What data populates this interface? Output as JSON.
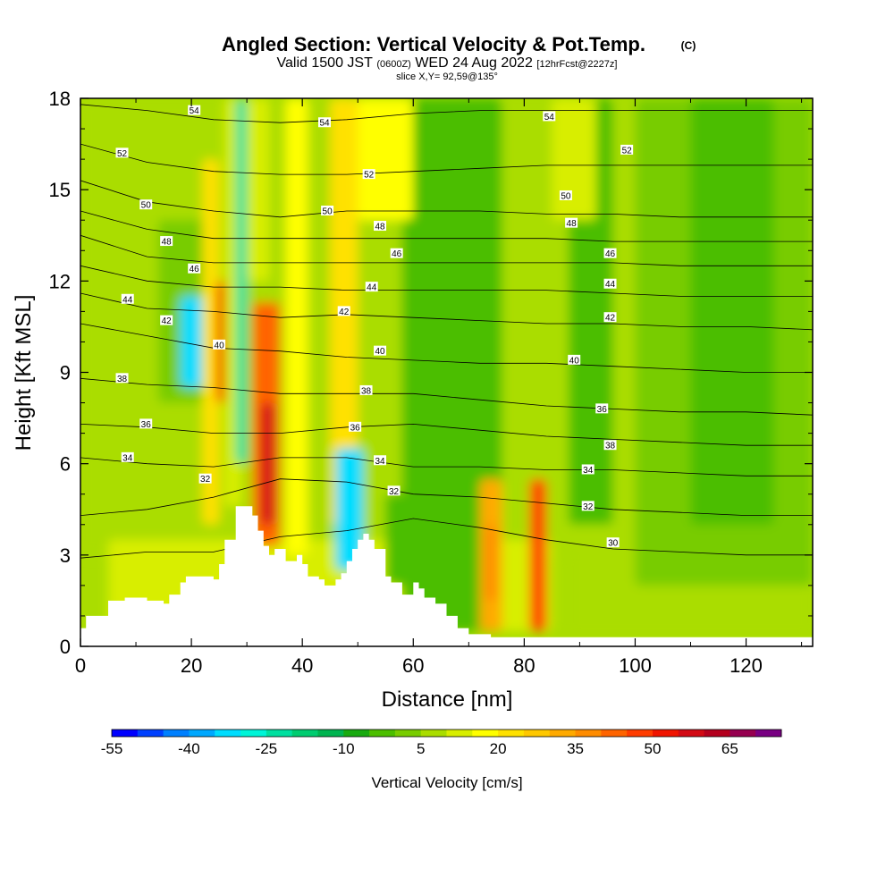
{
  "title": {
    "main": "Angled Section: Vertical Velocity & Pot.Temp.",
    "main_suffix": "(C)",
    "valid_a": "Valid 1500 JST",
    "valid_b": "(0600Z)",
    "valid_c": "WED 24 Aug 2022",
    "valid_d": "[12hrFcst@2227z]",
    "slice": "slice X,Y= 92,59@135°"
  },
  "chart_data": {
    "type": "heatmap",
    "xlabel": "Distance [nm]",
    "ylabel": "Height [Kft MSL]",
    "xlim": [
      0,
      132
    ],
    "ylim": [
      0,
      18
    ],
    "x_ticks": [
      "0",
      "20",
      "40",
      "60",
      "80",
      "100",
      "120"
    ],
    "y_ticks": [
      "0",
      "3",
      "6",
      "9",
      "12",
      "15",
      "18"
    ],
    "colorbar": {
      "label": "Vertical Velocity [cm/s]",
      "tick_labels": [
        "-55",
        "-40",
        "-25",
        "-10",
        "5",
        "20",
        "35",
        "50",
        "65"
      ],
      "levels": [
        -55,
        -50,
        -45,
        -40,
        -35,
        -30,
        -25,
        -20,
        -15,
        -10,
        -5,
        0,
        5,
        10,
        15,
        20,
        25,
        30,
        35,
        40,
        45,
        50,
        55,
        60,
        65,
        70
      ],
      "colors": [
        "#0000ff",
        "#0040ff",
        "#0080ff",
        "#00a8ff",
        "#00ddff",
        "#00f5d8",
        "#00e0a0",
        "#00cc70",
        "#00b450",
        "#18aa10",
        "#4cbe00",
        "#78cc00",
        "#aadd00",
        "#d8ee00",
        "#ffff00",
        "#ffe100",
        "#ffc800",
        "#ffaa00",
        "#ff8c00",
        "#ff6400",
        "#ff3c00",
        "#f01400",
        "#d20a14",
        "#b4001e",
        "#960050",
        "#780082"
      ]
    },
    "terrain": [
      [
        0,
        0.6
      ],
      [
        1,
        1.0
      ],
      [
        5,
        1.5
      ],
      [
        8,
        1.6
      ],
      [
        12,
        1.5
      ],
      [
        15,
        1.4
      ],
      [
        16,
        1.7
      ],
      [
        18,
        2.1
      ],
      [
        19,
        2.3
      ],
      [
        23,
        2.3
      ],
      [
        24,
        2.2
      ],
      [
        25,
        2.7
      ],
      [
        26,
        3.5
      ],
      [
        28,
        4.6
      ],
      [
        31,
        4.3
      ],
      [
        32,
        3.8
      ],
      [
        33,
        3.3
      ],
      [
        34,
        3.0
      ],
      [
        35,
        3.2
      ],
      [
        37,
        2.8
      ],
      [
        39,
        3.0
      ],
      [
        40,
        2.7
      ],
      [
        41,
        2.3
      ],
      [
        43,
        2.2
      ],
      [
        44,
        2.0
      ],
      [
        46,
        2.2
      ],
      [
        47,
        2.4
      ],
      [
        48,
        2.8
      ],
      [
        49,
        3.2
      ],
      [
        50,
        3.5
      ],
      [
        51,
        3.7
      ],
      [
        52,
        3.5
      ],
      [
        53,
        3.2
      ],
      [
        55,
        2.3
      ],
      [
        56,
        2.1
      ],
      [
        58,
        1.7
      ],
      [
        60,
        2.1
      ],
      [
        61,
        1.9
      ],
      [
        62,
        1.6
      ],
      [
        64,
        1.4
      ],
      [
        66,
        1.0
      ],
      [
        68,
        0.6
      ],
      [
        70,
        0.4
      ],
      [
        74,
        0.3
      ],
      [
        132,
        0.3
      ]
    ],
    "velocity_cells": [
      {
        "x": 0,
        "y": 3,
        "w": 132,
        "h": 15,
        "v": 8
      },
      {
        "x": 5,
        "y": 0.5,
        "w": 80,
        "h": 3,
        "v": 12
      },
      {
        "x": 88,
        "y": 0.3,
        "w": 44,
        "h": 4.5,
        "v": 5
      },
      {
        "x": 100,
        "y": 2,
        "w": 32,
        "h": 16,
        "v": 2
      },
      {
        "x": 58,
        "y": 0.5,
        "w": 18,
        "h": 17.5,
        "v": -5
      },
      {
        "x": 110,
        "y": 4,
        "w": 15,
        "h": 14,
        "v": -3
      },
      {
        "x": 14,
        "y": 8,
        "w": 10,
        "h": 6,
        "v": 0
      },
      {
        "x": 18,
        "y": 8.5,
        "w": 6,
        "h": 3,
        "v": -35
      },
      {
        "x": 22,
        "y": 4,
        "w": 3,
        "h": 12,
        "v": 20
      },
      {
        "x": 24.5,
        "y": 8,
        "w": 2,
        "h": 4,
        "v": 50
      },
      {
        "x": 26,
        "y": 4.6,
        "w": 3,
        "h": 13.4,
        "v": 10
      },
      {
        "x": 28,
        "y": 6,
        "w": 2,
        "h": 12,
        "v": -25
      },
      {
        "x": 30,
        "y": 12,
        "w": 4,
        "h": 6,
        "v": 10
      },
      {
        "x": 31,
        "y": 3.3,
        "w": 5,
        "h": 8,
        "v": 40
      },
      {
        "x": 32.5,
        "y": 4,
        "w": 2.5,
        "h": 4,
        "v": 55
      },
      {
        "x": 37,
        "y": 3,
        "w": 4,
        "h": 15,
        "v": 15
      },
      {
        "x": 45,
        "y": 4,
        "w": 5,
        "h": 14,
        "v": 20
      },
      {
        "x": 46,
        "y": 2.5,
        "w": 5,
        "h": 4,
        "v": -35
      },
      {
        "x": 55,
        "y": 2,
        "w": 4,
        "h": 3,
        "v": -5
      },
      {
        "x": 72,
        "y": 0.5,
        "w": 4,
        "h": 5,
        "v": 30
      },
      {
        "x": 73,
        "y": 1.5,
        "w": 2,
        "h": 2.5,
        "v": 35
      },
      {
        "x": 81,
        "y": 0.5,
        "w": 3,
        "h": 5,
        "v": 45
      },
      {
        "x": 88,
        "y": 4,
        "w": 8,
        "h": 14,
        "v": -2
      },
      {
        "x": 50,
        "y": 14,
        "w": 10,
        "h": 4,
        "v": 15
      },
      {
        "x": 85,
        "y": 14,
        "w": 8,
        "h": 4,
        "v": 10
      }
    ],
    "contours": [
      {
        "label": "30",
        "y": [
          2.9,
          3.1,
          3.1,
          3.6,
          3.8,
          4.2,
          3.9,
          3.5,
          3.2,
          3.1,
          3.0,
          3.0
        ]
      },
      {
        "label": "32",
        "y": [
          4.3,
          4.5,
          4.9,
          5.5,
          5.4,
          5.0,
          4.9,
          4.7,
          4.5,
          4.4,
          4.3,
          4.3
        ]
      },
      {
        "label": "34",
        "y": [
          6.2,
          6.0,
          5.9,
          6.2,
          6.2,
          5.9,
          5.9,
          5.8,
          5.8,
          5.7,
          5.6,
          5.6
        ]
      },
      {
        "label": "36",
        "y": [
          7.3,
          7.2,
          7.0,
          7.0,
          7.2,
          7.3,
          7.1,
          6.9,
          6.8,
          6.7,
          6.6,
          6.6
        ]
      },
      {
        "label": "38",
        "y": [
          8.8,
          8.6,
          8.5,
          8.3,
          8.3,
          8.3,
          8.1,
          7.9,
          7.8,
          7.7,
          7.7,
          7.6
        ]
      },
      {
        "label": "40",
        "y": [
          10.6,
          10.2,
          9.8,
          9.7,
          9.5,
          9.4,
          9.3,
          9.3,
          9.2,
          9.1,
          9.0,
          9.0
        ]
      },
      {
        "label": "42",
        "y": [
          11.6,
          11.1,
          11.0,
          10.8,
          10.9,
          10.8,
          10.7,
          10.6,
          10.6,
          10.5,
          10.5,
          10.4
        ]
      },
      {
        "label": "44",
        "y": [
          12.5,
          12.0,
          11.8,
          11.8,
          11.7,
          11.7,
          11.7,
          11.7,
          11.6,
          11.5,
          11.5,
          11.5
        ]
      },
      {
        "label": "46",
        "y": [
          13.5,
          12.8,
          12.6,
          12.6,
          12.6,
          12.6,
          12.6,
          12.6,
          12.6,
          12.5,
          12.5,
          12.5
        ]
      },
      {
        "label": "48",
        "y": [
          14.3,
          13.7,
          13.4,
          13.4,
          13.4,
          13.4,
          13.4,
          13.4,
          13.3,
          13.3,
          13.3,
          13.3
        ]
      },
      {
        "label": "50",
        "y": [
          15.3,
          14.6,
          14.3,
          14.1,
          14.3,
          14.3,
          14.3,
          14.2,
          14.2,
          14.1,
          14.1,
          14.1
        ]
      },
      {
        "label": "52",
        "y": [
          16.5,
          15.9,
          15.6,
          15.5,
          15.5,
          15.6,
          15.7,
          15.8,
          15.8,
          15.8,
          15.8,
          15.8
        ]
      },
      {
        "label": "54",
        "y": [
          17.8,
          17.6,
          17.3,
          17.2,
          17.3,
          17.5,
          17.6,
          17.6,
          17.6,
          17.6,
          17.6,
          17.6
        ]
      }
    ],
    "contour_x": [
      0,
      12,
      24,
      36,
      48,
      60,
      72,
      84,
      96,
      108,
      120,
      132
    ],
    "contour_labels": [
      {
        "text": "54",
        "x": 20.5,
        "y": 17.6
      },
      {
        "text": "54",
        "x": 44,
        "y": 17.2
      },
      {
        "text": "54",
        "x": 84.5,
        "y": 17.4
      },
      {
        "text": "52",
        "x": 7.5,
        "y": 16.2
      },
      {
        "text": "52",
        "x": 52,
        "y": 15.5
      },
      {
        "text": "52",
        "x": 98.5,
        "y": 16.3
      },
      {
        "text": "50",
        "x": 11.8,
        "y": 14.5
      },
      {
        "text": "50",
        "x": 44.5,
        "y": 14.3
      },
      {
        "text": "50",
        "x": 87.5,
        "y": 14.8
      },
      {
        "text": "48",
        "x": 15.5,
        "y": 13.3
      },
      {
        "text": "48",
        "x": 54,
        "y": 13.8
      },
      {
        "text": "48",
        "x": 88.5,
        "y": 13.9
      },
      {
        "text": "46",
        "x": 20.5,
        "y": 12.4
      },
      {
        "text": "46",
        "x": 57,
        "y": 12.9
      },
      {
        "text": "46",
        "x": 95.5,
        "y": 12.9
      },
      {
        "text": "44",
        "x": 8.5,
        "y": 11.4
      },
      {
        "text": "44",
        "x": 52.5,
        "y": 11.8
      },
      {
        "text": "44",
        "x": 95.5,
        "y": 11.9
      },
      {
        "text": "42",
        "x": 15.5,
        "y": 10.7
      },
      {
        "text": "42",
        "x": 47.5,
        "y": 11.0
      },
      {
        "text": "42",
        "x": 95.5,
        "y": 10.8
      },
      {
        "text": "40",
        "x": 25,
        "y": 9.9
      },
      {
        "text": "40",
        "x": 54,
        "y": 9.7
      },
      {
        "text": "40",
        "x": 89,
        "y": 9.4
      },
      {
        "text": "38",
        "x": 7.5,
        "y": 8.8
      },
      {
        "text": "38",
        "x": 51.5,
        "y": 8.4
      },
      {
        "text": "38",
        "x": 95.5,
        "y": 6.6
      },
      {
        "text": "36",
        "x": 11.8,
        "y": 7.3
      },
      {
        "text": "36",
        "x": 49.5,
        "y": 7.2
      },
      {
        "text": "36",
        "x": 94,
        "y": 7.8
      },
      {
        "text": "34",
        "x": 8.5,
        "y": 6.2
      },
      {
        "text": "34",
        "x": 54,
        "y": 6.1
      },
      {
        "text": "34",
        "x": 91.5,
        "y": 5.8
      },
      {
        "text": "32",
        "x": 22.5,
        "y": 5.5
      },
      {
        "text": "32",
        "x": 56.5,
        "y": 5.1
      },
      {
        "text": "32",
        "x": 91.5,
        "y": 4.6
      },
      {
        "text": "30",
        "x": 96,
        "y": 3.4
      }
    ]
  }
}
